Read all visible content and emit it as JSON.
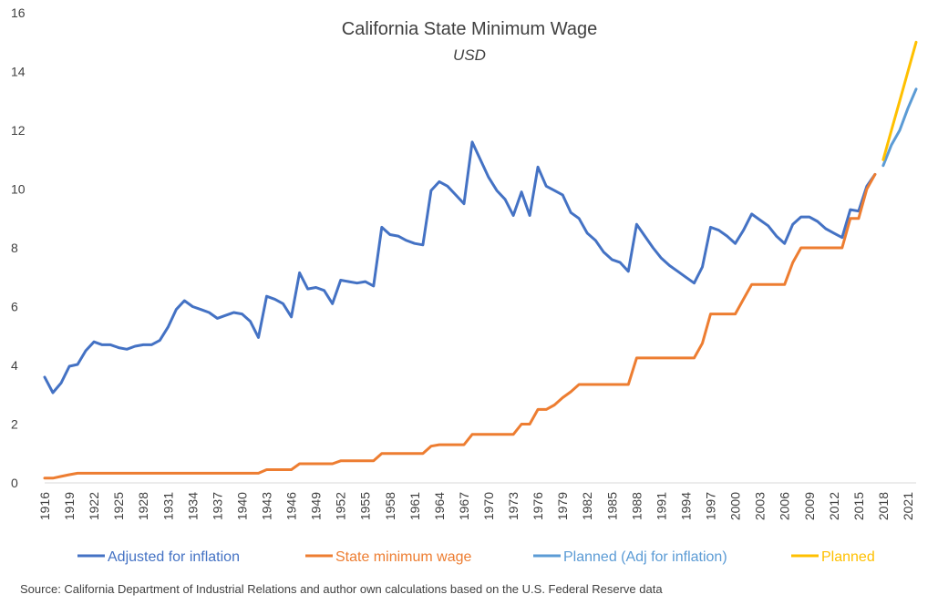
{
  "chart_data": {
    "type": "line",
    "title": "California State Minimum Wage",
    "subtitle": "USD",
    "xlabel": "",
    "ylabel": "",
    "ylim": [
      0,
      16
    ],
    "yticks": [
      "0",
      "2",
      "4",
      "6",
      "8",
      "10",
      "12",
      "14",
      "16"
    ],
    "xlim": [
      1916,
      2022
    ],
    "xticks": [
      "1916",
      "1919",
      "1922",
      "1925",
      "1928",
      "1931",
      "1934",
      "1937",
      "1940",
      "1943",
      "1946",
      "1949",
      "1952",
      "1955",
      "1958",
      "1961",
      "1964",
      "1967",
      "1970",
      "1973",
      "1976",
      "1979",
      "1982",
      "1985",
      "1988",
      "1991",
      "1994",
      "1997",
      "2000",
      "2003",
      "2006",
      "2009",
      "2012",
      "2015",
      "2018",
      "2021"
    ],
    "grid": false,
    "legend_position": "bottom",
    "source": "Source: California Department of Industrial Relations and author own calculations based on the U.S. Federal Reserve data",
    "series": [
      {
        "name": "Adjusted for inflation",
        "color": "#4472C4",
        "points": [
          [
            1916,
            3.6
          ],
          [
            1917,
            3.07
          ],
          [
            1918,
            3.4
          ],
          [
            1919,
            3.97
          ],
          [
            1920,
            4.03
          ],
          [
            1921,
            4.5
          ],
          [
            1922,
            4.8
          ],
          [
            1923,
            4.7
          ],
          [
            1924,
            4.7
          ],
          [
            1925,
            4.6
          ],
          [
            1926,
            4.55
          ],
          [
            1927,
            4.65
          ],
          [
            1928,
            4.7
          ],
          [
            1929,
            4.7
          ],
          [
            1930,
            4.85
          ],
          [
            1931,
            5.3
          ],
          [
            1932,
            5.9
          ],
          [
            1933,
            6.2
          ],
          [
            1934,
            6.0
          ],
          [
            1935,
            5.9
          ],
          [
            1936,
            5.8
          ],
          [
            1937,
            5.6
          ],
          [
            1938,
            5.7
          ],
          [
            1939,
            5.8
          ],
          [
            1940,
            5.75
          ],
          [
            1941,
            5.5
          ],
          [
            1942,
            4.95
          ],
          [
            1943,
            6.35
          ],
          [
            1944,
            6.25
          ],
          [
            1945,
            6.1
          ],
          [
            1946,
            5.65
          ],
          [
            1947,
            7.15
          ],
          [
            1948,
            6.6
          ],
          [
            1949,
            6.65
          ],
          [
            1950,
            6.55
          ],
          [
            1951,
            6.1
          ],
          [
            1952,
            6.9
          ],
          [
            1953,
            6.85
          ],
          [
            1954,
            6.8
          ],
          [
            1955,
            6.85
          ],
          [
            1956,
            6.7
          ],
          [
            1957,
            8.7
          ],
          [
            1958,
            8.45
          ],
          [
            1959,
            8.4
          ],
          [
            1960,
            8.25
          ],
          [
            1961,
            8.15
          ],
          [
            1962,
            8.1
          ],
          [
            1963,
            9.95
          ],
          [
            1964,
            10.25
          ],
          [
            1965,
            10.1
          ],
          [
            1966,
            9.8
          ],
          [
            1967,
            9.5
          ],
          [
            1968,
            11.6
          ],
          [
            1969,
            11.0
          ],
          [
            1970,
            10.4
          ],
          [
            1971,
            9.95
          ],
          [
            1972,
            9.65
          ],
          [
            1973,
            9.1
          ],
          [
            1974,
            9.9
          ],
          [
            1975,
            9.1
          ],
          [
            1976,
            10.75
          ],
          [
            1977,
            10.1
          ],
          [
            1978,
            9.95
          ],
          [
            1979,
            9.8
          ],
          [
            1980,
            9.2
          ],
          [
            1981,
            9.0
          ],
          [
            1982,
            8.5
          ],
          [
            1983,
            8.25
          ],
          [
            1984,
            7.85
          ],
          [
            1985,
            7.6
          ],
          [
            1986,
            7.5
          ],
          [
            1987,
            7.2
          ],
          [
            1988,
            8.8
          ],
          [
            1989,
            8.4
          ],
          [
            1990,
            8.0
          ],
          [
            1991,
            7.65
          ],
          [
            1992,
            7.4
          ],
          [
            1993,
            7.2
          ],
          [
            1994,
            7.0
          ],
          [
            1995,
            6.8
          ],
          [
            1996,
            7.35
          ],
          [
            1997,
            8.7
          ],
          [
            1998,
            8.6
          ],
          [
            1999,
            8.4
          ],
          [
            2000,
            8.15
          ],
          [
            2001,
            8.6
          ],
          [
            2002,
            9.15
          ],
          [
            2003,
            8.95
          ],
          [
            2004,
            8.75
          ],
          [
            2005,
            8.4
          ],
          [
            2006,
            8.15
          ],
          [
            2007,
            8.8
          ],
          [
            2008,
            9.05
          ],
          [
            2009,
            9.05
          ],
          [
            2010,
            8.9
          ],
          [
            2011,
            8.65
          ],
          [
            2012,
            8.5
          ],
          [
            2013,
            8.35
          ],
          [
            2014,
            9.3
          ],
          [
            2015,
            9.25
          ],
          [
            2016,
            10.1
          ],
          [
            2017,
            10.5
          ]
        ]
      },
      {
        "name": "State minimum wage",
        "color": "#ED7D31",
        "points": [
          [
            1916,
            0.16
          ],
          [
            1917,
            0.16
          ],
          [
            1918,
            0.22
          ],
          [
            1919,
            0.28
          ],
          [
            1920,
            0.33
          ],
          [
            1921,
            0.33
          ],
          [
            1922,
            0.33
          ],
          [
            1923,
            0.33
          ],
          [
            1924,
            0.33
          ],
          [
            1925,
            0.33
          ],
          [
            1926,
            0.33
          ],
          [
            1927,
            0.33
          ],
          [
            1928,
            0.33
          ],
          [
            1929,
            0.33
          ],
          [
            1930,
            0.33
          ],
          [
            1931,
            0.33
          ],
          [
            1932,
            0.33
          ],
          [
            1933,
            0.33
          ],
          [
            1934,
            0.33
          ],
          [
            1935,
            0.33
          ],
          [
            1936,
            0.33
          ],
          [
            1937,
            0.33
          ],
          [
            1938,
            0.33
          ],
          [
            1939,
            0.33
          ],
          [
            1940,
            0.33
          ],
          [
            1941,
            0.33
          ],
          [
            1942,
            0.33
          ],
          [
            1943,
            0.45
          ],
          [
            1944,
            0.45
          ],
          [
            1945,
            0.45
          ],
          [
            1946,
            0.45
          ],
          [
            1947,
            0.65
          ],
          [
            1948,
            0.65
          ],
          [
            1949,
            0.65
          ],
          [
            1950,
            0.65
          ],
          [
            1951,
            0.65
          ],
          [
            1952,
            0.75
          ],
          [
            1953,
            0.75
          ],
          [
            1954,
            0.75
          ],
          [
            1955,
            0.75
          ],
          [
            1956,
            0.75
          ],
          [
            1957,
            1.0
          ],
          [
            1958,
            1.0
          ],
          [
            1959,
            1.0
          ],
          [
            1960,
            1.0
          ],
          [
            1961,
            1.0
          ],
          [
            1962,
            1.0
          ],
          [
            1963,
            1.25
          ],
          [
            1964,
            1.3
          ],
          [
            1965,
            1.3
          ],
          [
            1966,
            1.3
          ],
          [
            1967,
            1.3
          ],
          [
            1968,
            1.65
          ],
          [
            1969,
            1.65
          ],
          [
            1970,
            1.65
          ],
          [
            1971,
            1.65
          ],
          [
            1972,
            1.65
          ],
          [
            1973,
            1.65
          ],
          [
            1974,
            2.0
          ],
          [
            1975,
            2.0
          ],
          [
            1976,
            2.5
          ],
          [
            1977,
            2.5
          ],
          [
            1978,
            2.65
          ],
          [
            1979,
            2.9
          ],
          [
            1980,
            3.1
          ],
          [
            1981,
            3.35
          ],
          [
            1982,
            3.35
          ],
          [
            1983,
            3.35
          ],
          [
            1984,
            3.35
          ],
          [
            1985,
            3.35
          ],
          [
            1986,
            3.35
          ],
          [
            1987,
            3.35
          ],
          [
            1988,
            4.25
          ],
          [
            1989,
            4.25
          ],
          [
            1990,
            4.25
          ],
          [
            1991,
            4.25
          ],
          [
            1992,
            4.25
          ],
          [
            1993,
            4.25
          ],
          [
            1994,
            4.25
          ],
          [
            1995,
            4.25
          ],
          [
            1996,
            4.75
          ],
          [
            1997,
            5.75
          ],
          [
            1998,
            5.75
          ],
          [
            1999,
            5.75
          ],
          [
            2000,
            5.75
          ],
          [
            2001,
            6.25
          ],
          [
            2002,
            6.75
          ],
          [
            2003,
            6.75
          ],
          [
            2004,
            6.75
          ],
          [
            2005,
            6.75
          ],
          [
            2006,
            6.75
          ],
          [
            2007,
            7.5
          ],
          [
            2008,
            8.0
          ],
          [
            2009,
            8.0
          ],
          [
            2010,
            8.0
          ],
          [
            2011,
            8.0
          ],
          [
            2012,
            8.0
          ],
          [
            2013,
            8.0
          ],
          [
            2014,
            9.0
          ],
          [
            2015,
            9.0
          ],
          [
            2016,
            10.0
          ],
          [
            2017,
            10.5
          ]
        ]
      },
      {
        "name": "Planned (Adj for inflation)",
        "color": "#5B9BD5",
        "points": [
          [
            2018,
            10.8
          ],
          [
            2019,
            11.5
          ],
          [
            2020,
            12.0
          ],
          [
            2021,
            12.75
          ],
          [
            2022,
            13.4
          ]
        ]
      },
      {
        "name": "Planned",
        "color": "#FFC000",
        "points": [
          [
            2018,
            11.0
          ],
          [
            2019,
            12.0
          ],
          [
            2020,
            13.0
          ],
          [
            2021,
            14.0
          ],
          [
            2022,
            15.0
          ]
        ]
      }
    ]
  }
}
